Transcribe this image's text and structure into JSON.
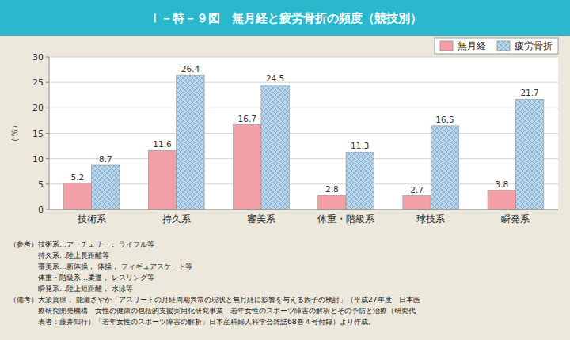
{
  "chart_data": {
    "type": "bar",
    "title": "Ｉ－特－９図　無月経と疲労骨折の頻度（競技別）",
    "y_label": "（％）",
    "categories": [
      "技術系",
      "持久系",
      "審美系",
      "体重・階級系",
      "球技系",
      "瞬発系"
    ],
    "series": [
      {
        "name": "無月経",
        "color": "#f4a0a8",
        "values": [
          5.2,
          11.6,
          16.7,
          2.8,
          2.7,
          3.8
        ]
      },
      {
        "name": "疲労骨折",
        "color": "#b8d8f0",
        "values": [
          8.7,
          26.4,
          24.5,
          11.3,
          16.5,
          21.7
        ]
      }
    ],
    "ylim": [
      0,
      30
    ],
    "yticks": [
      0,
      5,
      10,
      15,
      20,
      25,
      30
    ],
    "grid": true,
    "legend": "upper right",
    "data_labels": true,
    "annotations": [
      "（参考）技術系…アーチェリー， ライフル等",
      "　　　　持久系…陸上長距離等",
      "　　　　審美系…新体操， 体操， フィギュアスケート等",
      "　　　　体重・階級系…柔道， レスリング等",
      "　　　　瞬発系…陸上短距離， 水泳等",
      "（備考）大須賀穣， 能瀬さやか「アスリートの月経周期異常の現状と無月経に影響を与える因子の検討」（平成27年度　日本医",
      "　　　　療研究開発機構　女性の健康の包括的支援実用化研究事業　若年女性のスポーツ障害の解析とその予防と治療（研究代",
      "　　　　表者：藤井知行）「若年女性のスポーツ障害の解析」日本産科婦人科学会雑誌68巻４号付録）より作成。"
    ]
  }
}
